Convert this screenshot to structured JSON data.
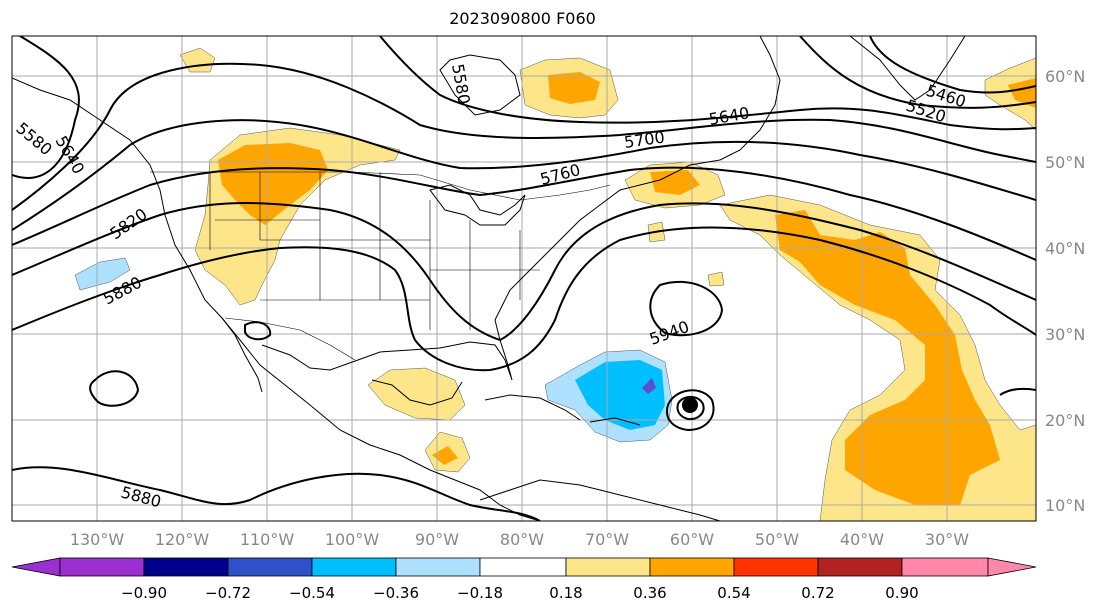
{
  "title": "2023090800 F060",
  "map": {
    "lon_labels": [
      "130°W",
      "120°W",
      "110°W",
      "100°W",
      "90°W",
      "80°W",
      "70°W",
      "60°W",
      "50°W",
      "40°W",
      "30°W"
    ],
    "lat_labels": [
      "60°N",
      "50°N",
      "40°N",
      "30°N",
      "20°N",
      "10°N"
    ],
    "contour_labels": [
      "5460",
      "5520",
      "5580",
      "5580",
      "5640",
      "5640",
      "5700",
      "5760",
      "5820",
      "5880",
      "5880",
      "5940"
    ],
    "colors": {
      "land_line": "#000000",
      "grid": "#aaaaaa",
      "contour": "#000000",
      "pos1": "#fde68a",
      "pos2": "#ffa500",
      "neg1": "#aee0ff",
      "neg2": "#00bfff",
      "neg3": "#5b4fcf"
    }
  },
  "colorbar": {
    "ticks": [
      "−0.90",
      "−0.72",
      "−0.54",
      "−0.36",
      "−0.18",
      "0.18",
      "0.36",
      "0.54",
      "0.72",
      "0.90"
    ],
    "colors": [
      "#9b30d0",
      "#00008b",
      "#3050c8",
      "#00bfff",
      "#aee0ff",
      "#ffffff",
      "#fde68a",
      "#ffa500",
      "#ff3300",
      "#b22222",
      "#ff88aa"
    ]
  }
}
